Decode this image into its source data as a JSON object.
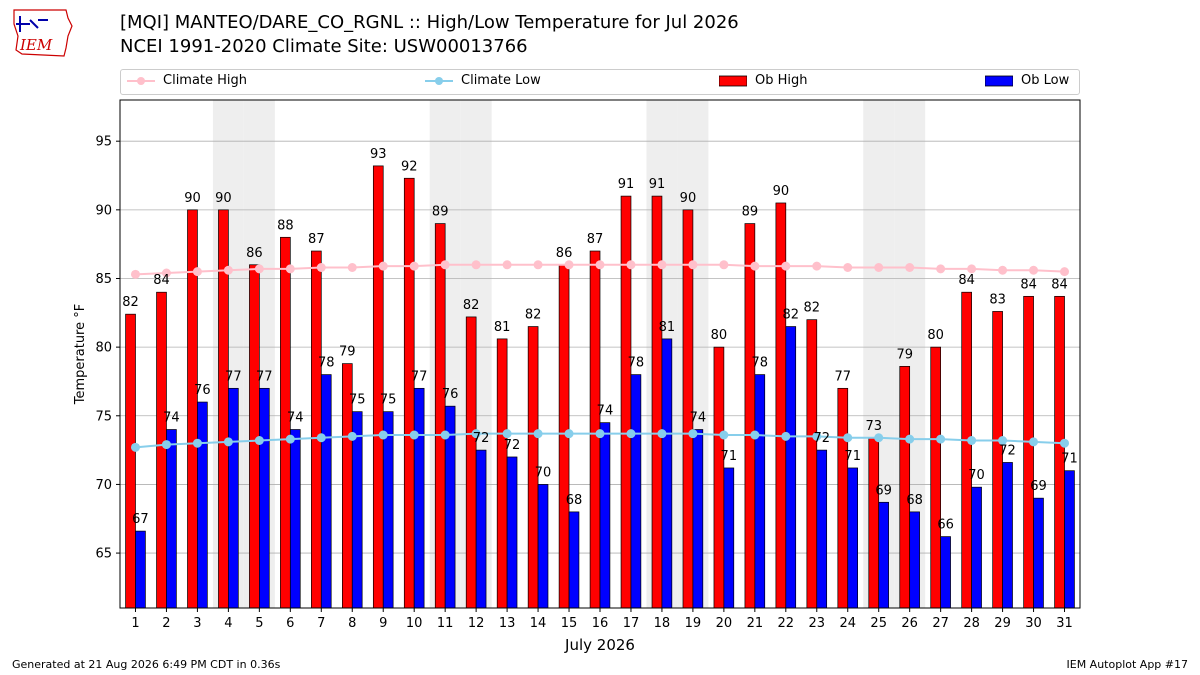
{
  "header": {
    "logo_text": "IEM",
    "title_line1": "[MQI] MANTEO/DARE_CO_RGNL :: High/Low Temperature for Jul 2026",
    "title_line2": "NCEI 1991-2020 Climate Site: USW00013766"
  },
  "legend": {
    "items": [
      {
        "label": "Climate High",
        "color": "#ffc0cb",
        "kind": "line"
      },
      {
        "label": "Climate Low",
        "color": "#87ceeb",
        "kind": "line"
      },
      {
        "label": "Ob High",
        "color": "#ff0000",
        "kind": "bar"
      },
      {
        "label": "Ob Low",
        "color": "#0000ff",
        "kind": "bar"
      }
    ],
    "placement": "top"
  },
  "footer": {
    "left": "Generated at 21 Aug 2026 6:49 PM CDT in 0.36s",
    "right": "IEM Autoplot App #17"
  },
  "chart_data": {
    "type": "bar",
    "xlabel": "July 2026",
    "ylabel": "Temperature °F",
    "ylim": [
      61,
      98
    ],
    "yticks": [
      65,
      70,
      75,
      80,
      85,
      90,
      95
    ],
    "grid": true,
    "weekend_shading_days": [
      4,
      5,
      11,
      12,
      18,
      19,
      25,
      26
    ],
    "categories": [
      1,
      2,
      3,
      4,
      5,
      6,
      7,
      8,
      9,
      10,
      11,
      12,
      13,
      14,
      15,
      16,
      17,
      18,
      19,
      20,
      21,
      22,
      23,
      24,
      25,
      26,
      27,
      28,
      29,
      30,
      31
    ],
    "series": [
      {
        "name": "Ob High",
        "type": "bar",
        "color": "#ff0000",
        "values": [
          82.4,
          84,
          90,
          90,
          86,
          88,
          87,
          78.8,
          93.2,
          92.3,
          89,
          82.2,
          80.6,
          81.5,
          86,
          87,
          91,
          91,
          90,
          80,
          89,
          90.5,
          82,
          77,
          73.4,
          78.6,
          80,
          84,
          82.6,
          83.7,
          83.7
        ],
        "labels": [
          82,
          84,
          90,
          90,
          86,
          88,
          87,
          79,
          93,
          92,
          89,
          82,
          81,
          82,
          86,
          87,
          91,
          91,
          90,
          80,
          89,
          90,
          82,
          77,
          73,
          79,
          80,
          84,
          83,
          84,
          84
        ]
      },
      {
        "name": "Ob Low",
        "type": "bar",
        "color": "#0000ff",
        "values": [
          66.6,
          74,
          76,
          77,
          77,
          74,
          78,
          75.3,
          75.3,
          77,
          75.7,
          72.5,
          72,
          70,
          68,
          74.5,
          78,
          80.6,
          74,
          71.2,
          78,
          81.5,
          72.5,
          71.2,
          68.7,
          68,
          66.2,
          69.8,
          71.6,
          69,
          71
        ],
        "labels": [
          67,
          74,
          76,
          77,
          77,
          74,
          78,
          75,
          75,
          77,
          76,
          72,
          72,
          70,
          68,
          74,
          78,
          81,
          74,
          71,
          78,
          82,
          72,
          71,
          69,
          68,
          66,
          70,
          72,
          69,
          71
        ]
      },
      {
        "name": "Climate High",
        "type": "line",
        "color": "#ffc0cb",
        "values": [
          85.3,
          85.4,
          85.5,
          85.6,
          85.7,
          85.7,
          85.8,
          85.8,
          85.9,
          85.9,
          86,
          86,
          86,
          86,
          86,
          86,
          86,
          86,
          86,
          86,
          85.9,
          85.9,
          85.9,
          85.8,
          85.8,
          85.8,
          85.7,
          85.7,
          85.6,
          85.6,
          85.5
        ]
      },
      {
        "name": "Climate Low",
        "type": "line",
        "color": "#87ceeb",
        "values": [
          72.7,
          72.9,
          73,
          73.1,
          73.2,
          73.3,
          73.4,
          73.5,
          73.6,
          73.6,
          73.6,
          73.7,
          73.7,
          73.7,
          73.7,
          73.7,
          73.7,
          73.7,
          73.7,
          73.6,
          73.6,
          73.5,
          73.5,
          73.4,
          73.4,
          73.3,
          73.3,
          73.2,
          73.2,
          73.1,
          73
        ]
      }
    ]
  }
}
